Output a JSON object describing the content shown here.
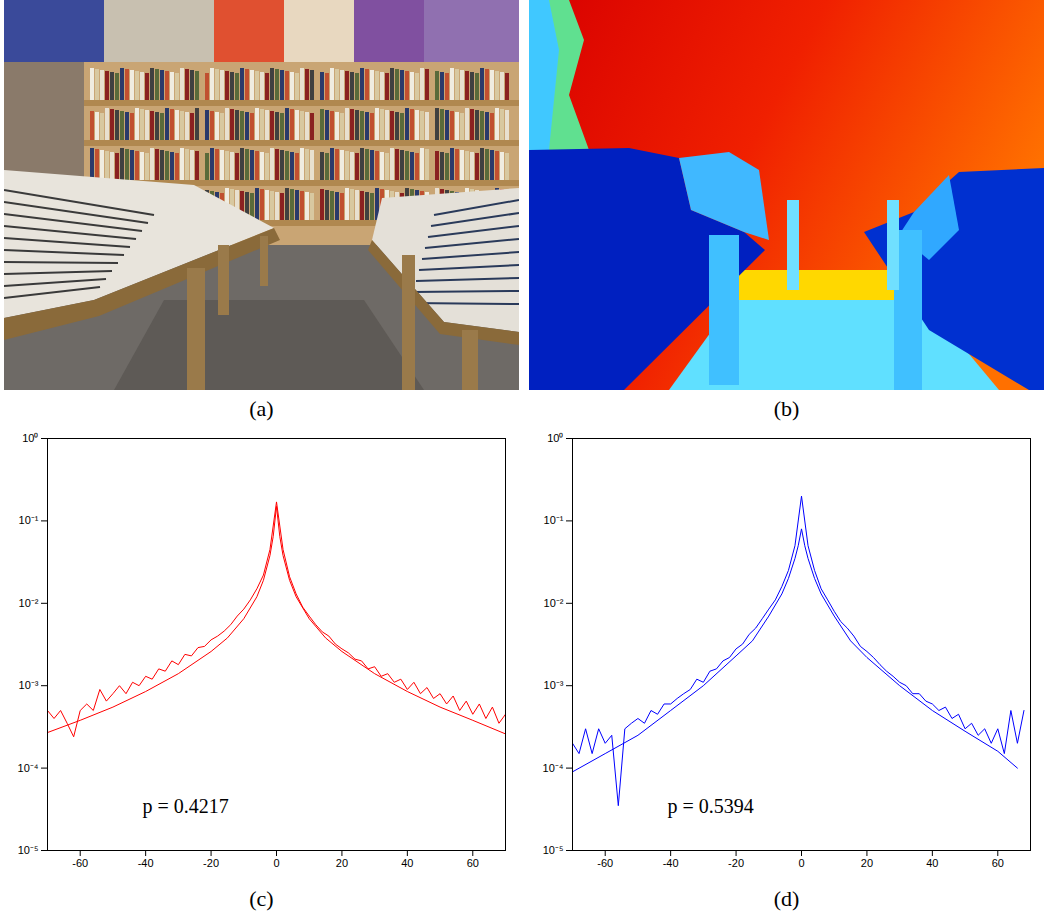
{
  "chart_data": [
    {
      "type": "photo",
      "caption": "(a)"
    },
    {
      "type": "depth_map",
      "caption": "(b)"
    },
    {
      "type": "line",
      "caption": "(c)",
      "annotation": "p = 0.4217",
      "log": "y",
      "xlim": [
        -70,
        70
      ],
      "xticks": [
        -60,
        -40,
        -20,
        0,
        20,
        40,
        60
      ],
      "ylim": [
        1e-05,
        1
      ],
      "yticks": [
        {
          "value": 1e-05,
          "label": "10⁻⁵"
        },
        {
          "value": 0.0001,
          "label": "10⁻⁴"
        },
        {
          "value": 0.001,
          "label": "10⁻³"
        },
        {
          "value": 0.01,
          "label": "10⁻²"
        },
        {
          "value": 0.1,
          "label": "10⁻¹"
        },
        {
          "value": 1,
          "label": "10⁰"
        }
      ],
      "series": [
        {
          "color": "#ff0000",
          "x": [
            -70,
            -68,
            -66,
            -64,
            -62,
            -60,
            -58,
            -56,
            -54,
            -52,
            -50,
            -48,
            -46,
            -44,
            -42,
            -40,
            -38,
            -36,
            -34,
            -32,
            -30,
            -28,
            -26,
            -24,
            -22,
            -20,
            -18,
            -16,
            -14,
            -12,
            -10,
            -8,
            -6,
            -4,
            -2,
            0,
            2,
            4,
            6,
            8,
            10,
            12,
            14,
            16,
            18,
            20,
            22,
            24,
            26,
            28,
            30,
            32,
            34,
            36,
            38,
            40,
            42,
            44,
            46,
            48,
            50,
            52,
            54,
            56,
            58,
            60,
            62,
            64,
            66,
            68,
            70
          ],
          "values": [
            0.0005,
            0.0004,
            0.0005,
            0.00035,
            0.00024,
            0.0005,
            0.0006,
            0.0005,
            0.0009,
            0.00065,
            0.0008,
            0.001,
            0.0008,
            0.0011,
            0.001,
            0.0013,
            0.0012,
            0.0016,
            0.0015,
            0.002,
            0.0018,
            0.0024,
            0.0023,
            0.0029,
            0.003,
            0.0036,
            0.004,
            0.0046,
            0.0055,
            0.007,
            0.0085,
            0.011,
            0.015,
            0.022,
            0.045,
            0.17,
            0.045,
            0.021,
            0.013,
            0.009,
            0.007,
            0.0055,
            0.0045,
            0.004,
            0.0032,
            0.0028,
            0.0025,
            0.0021,
            0.002,
            0.0016,
            0.0017,
            0.0013,
            0.0014,
            0.0011,
            0.0012,
            0.0009,
            0.0011,
            0.0008,
            0.00095,
            0.0007,
            0.0008,
            0.0006,
            0.00075,
            0.0005,
            0.00065,
            0.00045,
            0.0006,
            0.0004,
            0.00055,
            0.00035,
            0.00045
          ]
        },
        {
          "color": "#ff0000",
          "x": [
            -70,
            -60,
            -50,
            -40,
            -30,
            -20,
            -15,
            -10,
            -6,
            -4,
            -2,
            -1,
            0,
            1,
            2,
            4,
            6,
            10,
            15,
            20,
            30,
            40,
            50,
            60,
            70
          ],
          "values": [
            0.00027,
            0.00038,
            0.00055,
            0.00085,
            0.0014,
            0.0026,
            0.0038,
            0.0065,
            0.012,
            0.019,
            0.038,
            0.065,
            0.15,
            0.065,
            0.038,
            0.019,
            0.012,
            0.0065,
            0.0038,
            0.0026,
            0.0014,
            0.00085,
            0.00055,
            0.00038,
            0.00026
          ]
        }
      ]
    },
    {
      "type": "line",
      "caption": "(d)",
      "annotation": "p = 0.5394",
      "log": "y",
      "xlim": [
        -70,
        70
      ],
      "xticks": [
        -60,
        -40,
        -20,
        0,
        20,
        40,
        60
      ],
      "ylim": [
        1e-05,
        1
      ],
      "yticks": [
        {
          "value": 1e-05,
          "label": "10⁻⁵"
        },
        {
          "value": 0.0001,
          "label": "10⁻⁴"
        },
        {
          "value": 0.001,
          "label": "10⁻³"
        },
        {
          "value": 0.01,
          "label": "10⁻²"
        },
        {
          "value": 0.1,
          "label": "10⁻¹"
        },
        {
          "value": 1,
          "label": "10⁰"
        }
      ],
      "series": [
        {
          "color": "#0000ff",
          "x": [
            -70,
            -68,
            -66,
            -64,
            -62,
            -60,
            -58,
            -56,
            -54,
            -52,
            -50,
            -48,
            -46,
            -44,
            -42,
            -40,
            -38,
            -36,
            -34,
            -32,
            -30,
            -28,
            -26,
            -24,
            -22,
            -20,
            -18,
            -16,
            -14,
            -12,
            -10,
            -8,
            -6,
            -4,
            -2,
            0,
            2,
            4,
            6,
            8,
            10,
            12,
            14,
            16,
            18,
            20,
            22,
            24,
            26,
            28,
            30,
            32,
            34,
            36,
            38,
            40,
            42,
            44,
            46,
            48,
            50,
            52,
            54,
            56,
            58,
            60,
            62,
            64,
            66,
            68
          ],
          "values": [
            0.0002,
            0.00015,
            0.0003,
            0.00015,
            0.0003,
            0.0002,
            0.00025,
            3.5e-05,
            0.0003,
            0.00035,
            0.0004,
            0.00035,
            0.0005,
            0.00045,
            0.0006,
            0.0006,
            0.0007,
            0.0008,
            0.0009,
            0.0012,
            0.0011,
            0.0015,
            0.0016,
            0.002,
            0.0022,
            0.0028,
            0.0032,
            0.0042,
            0.005,
            0.0065,
            0.0085,
            0.011,
            0.016,
            0.025,
            0.05,
            0.2,
            0.05,
            0.025,
            0.015,
            0.011,
            0.008,
            0.006,
            0.005,
            0.004,
            0.003,
            0.0026,
            0.0022,
            0.0018,
            0.0015,
            0.0013,
            0.0011,
            0.001,
            0.0008,
            0.0008,
            0.00065,
            0.0006,
            0.0005,
            0.00055,
            0.0004,
            0.00045,
            0.0003,
            0.00035,
            0.00025,
            0.0003,
            0.0002,
            0.0003,
            0.00015,
            0.0005,
            0.0002,
            0.0005
          ]
        },
        {
          "color": "#0000ff",
          "x": [
            -70,
            -60,
            -50,
            -40,
            -30,
            -20,
            -15,
            -10,
            -6,
            -4,
            -2,
            -1,
            0,
            1,
            2,
            4,
            6,
            10,
            15,
            20,
            30,
            40,
            50,
            60,
            66
          ],
          "values": [
            9e-05,
            0.00015,
            0.00025,
            0.0005,
            0.001,
            0.0023,
            0.0035,
            0.007,
            0.013,
            0.02,
            0.035,
            0.05,
            0.08,
            0.05,
            0.035,
            0.02,
            0.013,
            0.007,
            0.0035,
            0.0022,
            0.001,
            0.0005,
            0.00028,
            0.00016,
            0.0001
          ]
        }
      ]
    }
  ]
}
